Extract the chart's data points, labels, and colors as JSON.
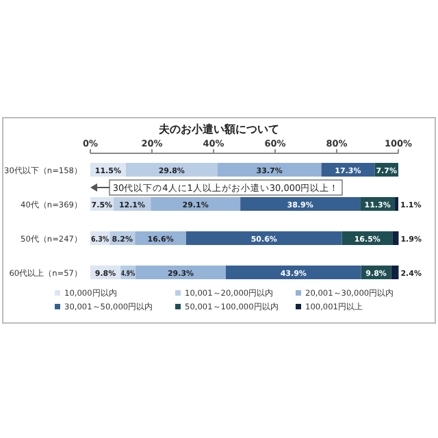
{
  "chart_data": {
    "type": "bar",
    "orientation": "horizontal",
    "stacked": true,
    "title": "夫のお小遣い額について",
    "categories": [
      "30代以下（n=158）",
      "40代（n=369）",
      "50代（n=247）",
      "60代以上（n=57）"
    ],
    "series": [
      {
        "name": "10,000円以内",
        "color": "#dce6f2",
        "values": [
          11.5,
          7.5,
          6.3,
          9.8
        ],
        "value_labels": [
          "11.5%",
          "7.5%",
          "6.3%",
          "9.8%"
        ]
      },
      {
        "name": "10,001～20,000円以内",
        "color": "#b9cde5",
        "values": [
          29.8,
          12.1,
          8.2,
          4.9
        ],
        "value_labels": [
          "29.8%",
          "12.1%",
          "8.2%",
          "4.9%"
        ]
      },
      {
        "name": "20,001～30,000円以内",
        "color": "#95b3d7",
        "values": [
          33.7,
          29.1,
          16.6,
          29.3
        ],
        "value_labels": [
          "33.7%",
          "29.1%",
          "16.6%",
          "29.3%"
        ]
      },
      {
        "name": "30,001～50,000円以内",
        "color": "#376092",
        "values": [
          17.3,
          38.9,
          50.6,
          43.9
        ],
        "value_labels": [
          "17.3%",
          "38.9%",
          "50.6%",
          "43.9%"
        ]
      },
      {
        "name": "50,001～100,000円以内",
        "color": "#1f4f53",
        "values": [
          7.7,
          11.3,
          16.5,
          9.8
        ],
        "value_labels": [
          "7.7%",
          "11.3%",
          "16.5%",
          "9.8%"
        ]
      },
      {
        "name": "100,001円以上",
        "color": "#10213f",
        "values": [
          0,
          1.1,
          1.9,
          2.4
        ],
        "value_labels": [
          null,
          "1.1%",
          "1.9%",
          "2.4%"
        ]
      }
    ],
    "xlim": [
      0,
      100
    ],
    "xticks": [
      {
        "value": 0,
        "label": "0%"
      },
      {
        "value": 20,
        "label": "20%"
      },
      {
        "value": 40,
        "label": "40%"
      },
      {
        "value": 60,
        "label": "60%"
      },
      {
        "value": 80,
        "label": "80%"
      },
      {
        "value": 100,
        "label": "100%"
      }
    ],
    "legend": "bottom",
    "annotations": [
      "30代以下の4人に1人以上がお小遣い30,000円以上！"
    ]
  }
}
